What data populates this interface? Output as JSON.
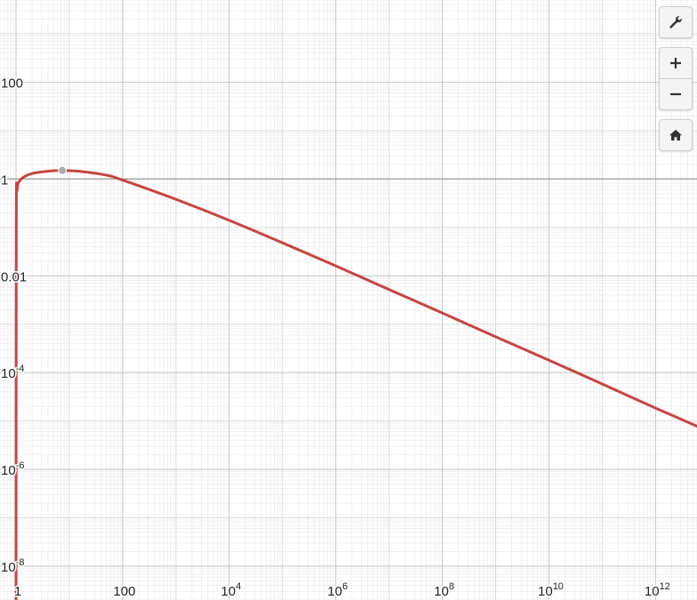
{
  "chart_data": {
    "type": "line",
    "title": "",
    "xlabel": "",
    "ylabel": "",
    "x_scale": "log",
    "y_scale": "log",
    "xlim": [
      0.5,
      6000000000000.0
    ],
    "ylim": [
      2e-09,
      5000
    ],
    "grid": true,
    "x_ticks": [
      {
        "base": "1",
        "exp": ""
      },
      {
        "base": "100",
        "exp": ""
      },
      {
        "base": "10",
        "exp": "4"
      },
      {
        "base": "10",
        "exp": "6"
      },
      {
        "base": "10",
        "exp": "8"
      },
      {
        "base": "10",
        "exp": "10"
      },
      {
        "base": "10",
        "exp": "12"
      }
    ],
    "y_ticks": [
      {
        "base": "100",
        "exp": ""
      },
      {
        "base": "1",
        "exp": ""
      },
      {
        "base": "0.01",
        "exp": ""
      },
      {
        "base": "10",
        "exp": "-4"
      },
      {
        "base": "10",
        "exp": "-6"
      },
      {
        "base": "10",
        "exp": "-8"
      }
    ],
    "series": [
      {
        "color": "#c74440",
        "x": [
          1,
          1.01,
          1.05,
          1.2,
          1.5,
          2,
          3,
          5,
          7.4,
          15,
          50,
          100,
          1000,
          10000,
          100000,
          1000000,
          10000000,
          100000000,
          1000000000,
          10000000000,
          100000000000,
          1000000000000,
          6000000000000
        ],
        "y": [
          1e-09,
          0.1,
          0.6,
          0.95,
          1.15,
          1.3,
          1.4,
          1.48,
          1.5,
          1.45,
          1.2,
          0.95,
          0.38,
          0.14,
          0.048,
          0.016,
          0.0052,
          0.0017,
          0.00055,
          0.00018,
          5.8e-05,
          1.85e-05,
          7.8e-06
        ]
      }
    ],
    "marked_point": {
      "x": 7.4,
      "y": 1.5,
      "color": "#aaaaaa"
    }
  },
  "controls": {
    "settings_icon": "wrench-icon",
    "zoom_in_icon": "plus-icon",
    "zoom_out_icon": "minus-icon",
    "home_icon": "home-icon"
  }
}
